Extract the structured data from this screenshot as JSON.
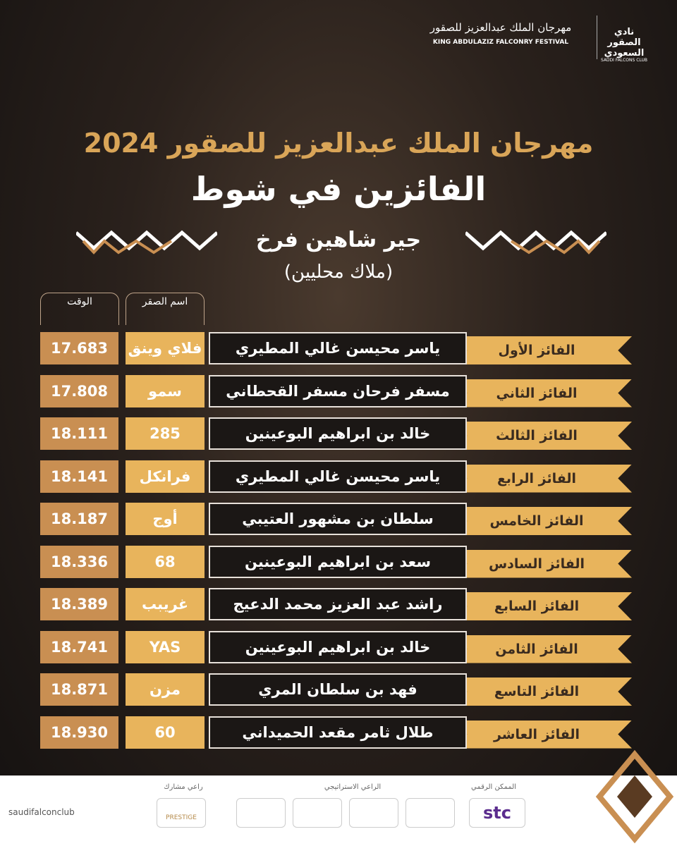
{
  "header": {
    "festival_ar": "مهرجان الملك عبدالعزيز للصقور",
    "festival_en": "KING ABDULAZIZ FALCONRY FESTIVAL",
    "club_ar": "نادي الصقور السعودي",
    "club_en": "SAUDI FALCONS CLUB"
  },
  "title": "مهرجان الملك عبدالعزيز للصقور 2024",
  "subtitle": "الفائزين في شوط",
  "category": "جير شاهين فرخ",
  "subcategory": "(ملاك محليين)",
  "table": {
    "columns": [
      "الوقت",
      "اسم الصقر"
    ],
    "rows": [
      [
        "الفائز الأول",
        "ياسر محيسن غالي المطيري",
        "فلاي وينق",
        "17.683"
      ],
      [
        "الفائز الثاني",
        "مسفر فرحان مسفر القحطاني",
        "سمو",
        "17.808"
      ],
      [
        "الفائز الثالث",
        "خالد بن ابراهيم البوعينين",
        "285",
        "18.111"
      ],
      [
        "الفائز الرابع",
        "ياسر محيسن غالي المطيري",
        "فرانكل",
        "18.141"
      ],
      [
        "الفائز الخامس",
        "سلطان بن مشهور العتيبي",
        "أوج",
        "18.187"
      ],
      [
        "الفائز السادس",
        "سعد بن ابراهيم البوعينين",
        "68",
        "18.336"
      ],
      [
        "الفائز السابع",
        "راشد عبد العزيز محمد الدعيج",
        "غريبب",
        "18.389"
      ],
      [
        "الفائز الثامن",
        "خالد بن ابراهيم البوعينين",
        "YAS",
        "18.741"
      ],
      [
        "الفائز التاسع",
        "فهد بن سلطان المري",
        "مزن",
        "18.871"
      ],
      [
        "الفائز العاشر",
        "طلال ثامر مقعد الحميداني",
        "60",
        "18.930"
      ]
    ]
  },
  "footer": {
    "digital_enabler": "الممكن الرقمي",
    "strategic_sponsor": "الراعي الاستراتيجي",
    "co_sponsor": "راعي مشارك",
    "stc": "stc",
    "prestige": "PRESTIGE",
    "handle": "saudifalconclub"
  }
}
